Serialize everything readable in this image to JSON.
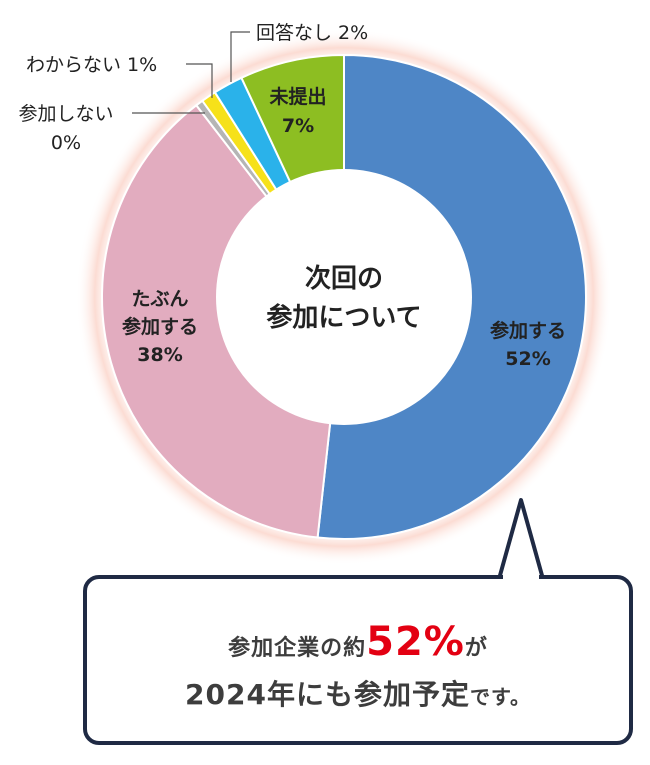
{
  "chart_data": {
    "type": "pie",
    "title": "次回の参加について",
    "title_lines": [
      "次回の",
      "参加について"
    ],
    "slices": [
      {
        "label": "参加する",
        "value": 52,
        "color": "#4e86c6"
      },
      {
        "label": "たぶん参加する",
        "value": 38,
        "color": "#e2acbf"
      },
      {
        "label": "参加しない",
        "value": 0.5,
        "color": "#b5b5b5"
      },
      {
        "label": "わからない",
        "value": 1,
        "color": "#f6e11a"
      },
      {
        "label": "回答なし",
        "value": 2,
        "color": "#2ab2ea"
      },
      {
        "label": "未提出",
        "value": 7,
        "color": "#8dbe22"
      }
    ],
    "slice_text": {
      "s0_l1": "参加する",
      "s0_l2": "52%",
      "s1_l1": "たぶん",
      "s1_l2": "参加する",
      "s1_l3": "38%",
      "s2_l1": "参加しない",
      "s2_l2": "0%",
      "s3_l1": "わからない 1%",
      "s4_l1": "回答なし 2%",
      "s5_l1": "未提出",
      "s5_l2": "7%"
    }
  },
  "callout": {
    "line1_pre": "参加企業の約",
    "line1_highlight": "52%",
    "line1_post": "が",
    "line2_main": "2024年にも参加予定",
    "line2_small": "です。"
  }
}
